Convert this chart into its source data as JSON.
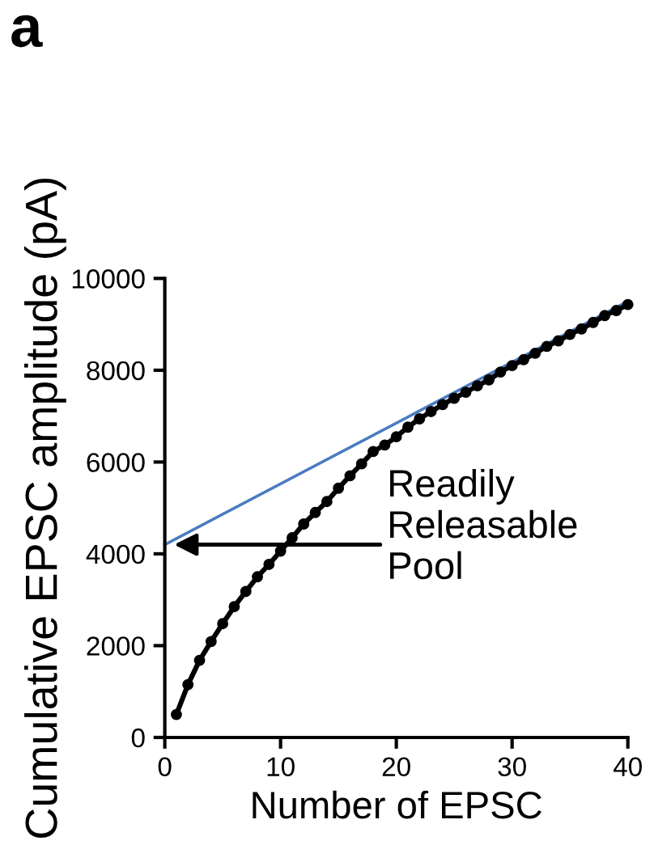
{
  "chart_data": {
    "type": "line",
    "xlabel": "Number of EPSC",
    "ylabel": "Cumulative EPSC amplitude (pA)",
    "annotations": [
      "a",
      "Readily\nReleasable\nPool"
    ],
    "xlim": [
      0,
      40
    ],
    "ylim": [
      0,
      10000
    ],
    "xticks": [
      0,
      10,
      20,
      30,
      40
    ],
    "yticks": [
      0,
      2000,
      4000,
      6000,
      8000,
      10000
    ],
    "grid": false,
    "legend": false,
    "series": [
      {
        "color": "#000000",
        "marker": "circle",
        "line_style": "solid",
        "x": [
          1,
          2,
          3,
          4,
          5,
          6,
          7,
          8,
          9,
          10,
          11,
          12,
          13,
          14,
          15,
          16,
          17,
          18,
          19,
          20,
          21,
          22,
          23,
          24,
          25,
          26,
          27,
          28,
          29,
          30,
          31,
          32,
          33,
          34,
          35,
          36,
          37,
          38,
          39,
          40
        ],
        "values": [
          500,
          1150,
          1680,
          2090,
          2480,
          2850,
          3180,
          3500,
          3770,
          4060,
          4350,
          4650,
          4900,
          5140,
          5430,
          5700,
          5960,
          6230,
          6370,
          6550,
          6760,
          6940,
          7100,
          7250,
          7390,
          7520,
          7660,
          7790,
          7960,
          8100,
          8230,
          8370,
          8520,
          8640,
          8780,
          8900,
          9040,
          9190,
          9300,
          9430
        ]
      },
      {
        "color": "#4a7cc0",
        "marker": "none",
        "line_style": "solid",
        "x": [
          0,
          40
        ],
        "values": [
          4200,
          9500
        ]
      }
    ]
  }
}
